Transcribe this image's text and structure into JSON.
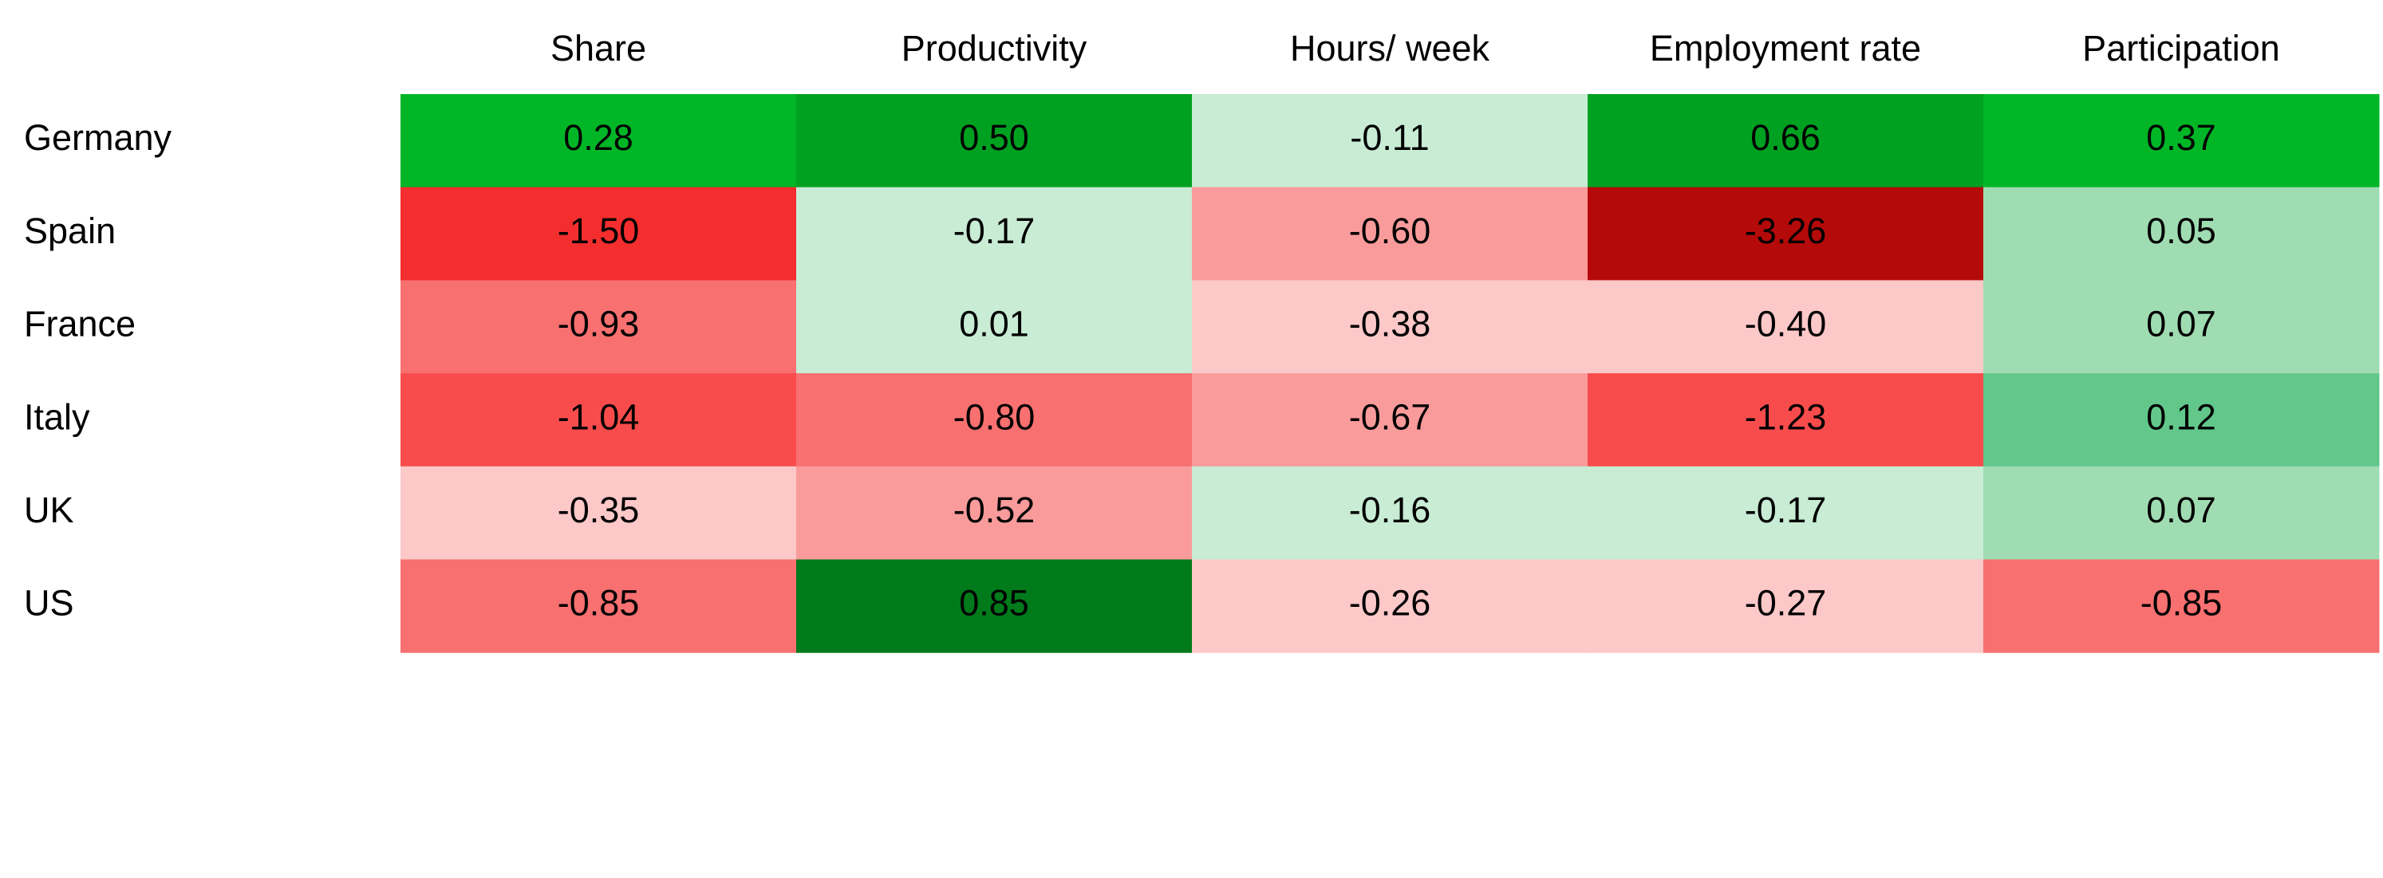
{
  "chart_data": {
    "type": "heatmap",
    "categories": [
      "Share",
      "Productivity",
      "Hours/ week",
      "Employment rate",
      "Participation"
    ],
    "rows": [
      "Germany",
      "Spain",
      "France",
      "Italy",
      "UK",
      "US"
    ],
    "values": [
      [
        0.28,
        0.5,
        -0.11,
        0.66,
        0.37
      ],
      [
        -1.5,
        -0.17,
        -0.6,
        -3.26,
        0.05
      ],
      [
        -0.93,
        0.01,
        -0.38,
        -0.4,
        0.07
      ],
      [
        -1.04,
        -0.8,
        -0.67,
        -1.23,
        0.12
      ],
      [
        -0.35,
        -0.52,
        -0.16,
        -0.17,
        0.07
      ],
      [
        -0.85,
        0.85,
        -0.26,
        -0.27,
        -0.85
      ]
    ],
    "value_labels": [
      [
        "0.28",
        "0.50",
        "-0.11",
        "0.66",
        "0.37"
      ],
      [
        "-1.50",
        "-0.17",
        "-0.60",
        "-3.26",
        "0.05"
      ],
      [
        "-0.93",
        "0.01",
        "-0.38",
        "-0.40",
        "0.07"
      ],
      [
        "-1.04",
        "-0.80",
        "-0.67",
        "-1.23",
        "0.12"
      ],
      [
        "-0.35",
        "-0.52",
        "-0.16",
        "-0.17",
        "0.07"
      ],
      [
        "-0.85",
        "0.85",
        "-0.26",
        "-0.27",
        "-0.85"
      ]
    ],
    "colors": [
      [
        "#00b626",
        "#00a020",
        "#c8ecd4",
        "#00a020",
        "#00b626"
      ],
      [
        "#f42e2e",
        "#c8ecd4",
        "#fa9b9b",
        "#b40a0a",
        "#a0dcb2"
      ],
      [
        "#f87070",
        "#c8ecd4",
        "#fcc8c8",
        "#fcc8c8",
        "#a0dcb2"
      ],
      [
        "#f84c4c",
        "#f87070",
        "#fa9b9b",
        "#f84c4c",
        "#62c78a"
      ],
      [
        "#fcc8c8",
        "#fa9b9b",
        "#c8ecd4",
        "#c8ecd4",
        "#a0dcb2"
      ],
      [
        "#f87070",
        "#007a1a",
        "#fcc8c8",
        "#fcc8c8",
        "#f87070"
      ]
    ]
  }
}
